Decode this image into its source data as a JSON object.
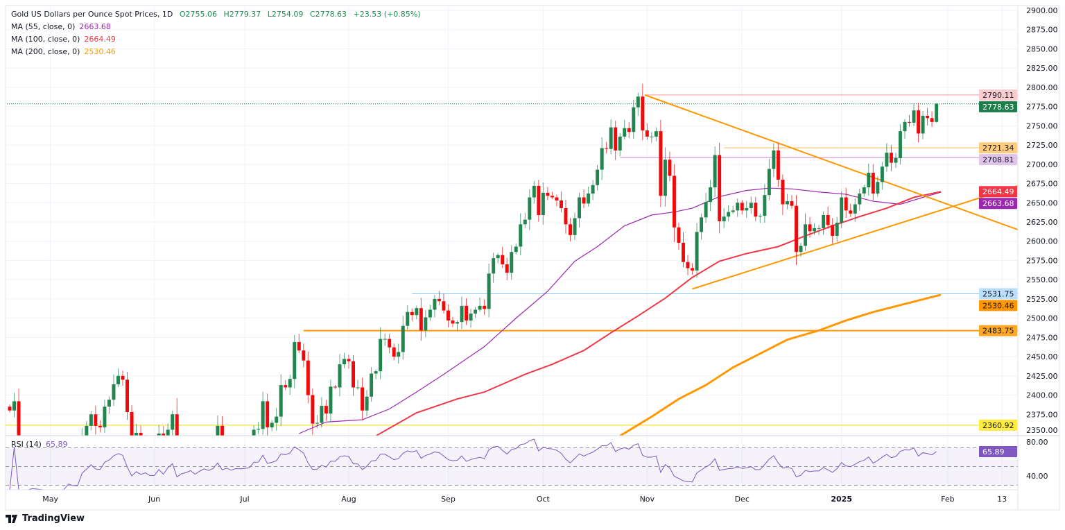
{
  "header": {
    "title": "Gold US Dollars per Ounce Spot Prices, 1D",
    "open": "O2755.06",
    "high": "H2779.37",
    "low": "L2754.09",
    "close": "C2778.63",
    "change": "+23.53 (+0.85%)"
  },
  "indicators": [
    {
      "label": "MA (55, close, 0)",
      "value": "2663.68",
      "color": "#9c27b0"
    },
    {
      "label": "MA (100, close, 0)",
      "value": "2664.49",
      "color": "#f23645"
    },
    {
      "label": "MA (200, close, 0)",
      "value": "2530.46",
      "color": "#ff9800"
    }
  ],
  "rsi": {
    "label": "RSI (14)",
    "value": "65.89",
    "color": "#7e57c2"
  },
  "logo": "TradingView",
  "chart_data": {
    "type": "candlestick",
    "title": "Gold US Dollars per Ounce Spot Prices, 1D",
    "ylim": [
      2350,
      2900
    ],
    "y_ticks": [
      2350,
      2375,
      2400,
      2425,
      2450,
      2475,
      2500,
      2525,
      2550,
      2575,
      2600,
      2625,
      2650,
      2675,
      2700,
      2725,
      2750,
      2775,
      2800,
      2825,
      2850,
      2875,
      2900
    ],
    "x_ticks": [
      {
        "label": "May",
        "bar": 9
      },
      {
        "label": "Jun",
        "bar": 32
      },
      {
        "label": "Jul",
        "bar": 52
      },
      {
        "label": "Aug",
        "bar": 75
      },
      {
        "label": "Sep",
        "bar": 97
      },
      {
        "label": "Oct",
        "bar": 118
      },
      {
        "label": "Nov",
        "bar": 141
      },
      {
        "label": "Dec",
        "bar": 162
      },
      {
        "label": "2025",
        "bar": 184
      },
      {
        "label": "Feb",
        "bar": 207.5
      },
      {
        "label": "13",
        "bar": 219.5
      }
    ],
    "grid": true,
    "first_open": 2385,
    "last_candle": {
      "open": 2755.06,
      "high": 2779.37,
      "low": 2754.09,
      "close": 2778.63
    },
    "closes": [
      2380,
      2392,
      2327,
      2322,
      2333,
      2337,
      2335,
      2333,
      2303,
      2300,
      2303,
      2301,
      2310,
      2323,
      2314,
      2313,
      2346,
      2360,
      2375,
      2360,
      2358,
      2385,
      2394,
      2414,
      2425,
      2420,
      2378,
      2333,
      2351,
      2335,
      2342,
      2327,
      2327,
      2350,
      2326,
      2355,
      2375,
      2293,
      2310,
      2316,
      2326,
      2303,
      2318,
      2330,
      2321,
      2330,
      2360,
      2322,
      2331,
      2319,
      2327,
      2326,
      2328,
      2330,
      2355,
      2356,
      2392,
      2358,
      2364,
      2372,
      2413,
      2410,
      2421,
      2469,
      2458,
      2445,
      2400,
      2363,
      2364,
      2386,
      2376,
      2411,
      2410,
      2440,
      2447,
      2444,
      2410,
      2410,
      2380,
      2398,
      2428,
      2431,
      2473,
      2473,
      2462,
      2450,
      2456,
      2490,
      2508,
      2504,
      2513,
      2484,
      2501,
      2511,
      2525,
      2522,
      2510,
      2497,
      2493,
      2495,
      2516,
      2497,
      2506,
      2511,
      2516,
      2512,
      2558,
      2578,
      2582,
      2570,
      2559,
      2586,
      2593,
      2622,
      2628,
      2657,
      2672,
      2634,
      2663,
      2659,
      2657,
      2653,
      2643,
      2622,
      2608,
      2630,
      2657,
      2649,
      2662,
      2673,
      2693,
      2721,
      2720,
      2748,
      2718,
      2736,
      2747,
      2742,
      2774,
      2788,
      2744,
      2736,
      2736,
      2743,
      2659,
      2706,
      2685,
      2618,
      2598,
      2573,
      2565,
      2562,
      2612,
      2631,
      2651,
      2670,
      2712,
      2626,
      2632,
      2638,
      2640,
      2650,
      2640,
      2643,
      2650,
      2632,
      2633,
      2660,
      2694,
      2718,
      2680,
      2648,
      2652,
      2646,
      2586,
      2594,
      2622,
      2613,
      2617,
      2617,
      2634,
      2621,
      2607,
      2624,
      2657,
      2640,
      2636,
      2648,
      2662,
      2670,
      2689,
      2662,
      2677,
      2697,
      2715,
      2702,
      2708,
      2743,
      2755,
      2754,
      2770,
      2740,
      2763,
      2760,
      2755,
      2778.63
    ],
    "moving_averages": [
      {
        "name": "MA (55, close, 0)",
        "color": "#9c27b0",
        "points": [
          [
            64,
            2350
          ],
          [
            70,
            2365
          ],
          [
            78,
            2368
          ],
          [
            84,
            2382
          ],
          [
            90,
            2404
          ],
          [
            96,
            2427
          ],
          [
            105,
            2463
          ],
          [
            112,
            2500
          ],
          [
            119,
            2535
          ],
          [
            125,
            2574
          ],
          [
            130,
            2593
          ],
          [
            136,
            2620
          ],
          [
            142,
            2634
          ],
          [
            147,
            2638
          ],
          [
            151,
            2643
          ],
          [
            157,
            2658
          ],
          [
            163,
            2666
          ],
          [
            168,
            2669
          ],
          [
            173,
            2668
          ],
          [
            179,
            2664
          ],
          [
            185,
            2661
          ],
          [
            191,
            2652
          ],
          [
            197,
            2648
          ],
          [
            202,
            2657
          ],
          [
            206,
            2663.68
          ]
        ]
      },
      {
        "name": "MA (100, close, 0)",
        "color": "#f23645",
        "points": [
          [
            81,
            2347
          ],
          [
            90,
            2377
          ],
          [
            99,
            2395
          ],
          [
            105,
            2404
          ],
          [
            114,
            2427
          ],
          [
            120,
            2440
          ],
          [
            127,
            2458
          ],
          [
            133,
            2481
          ],
          [
            139,
            2503
          ],
          [
            145,
            2526
          ],
          [
            151,
            2553
          ],
          [
            157,
            2574
          ],
          [
            163,
            2584
          ],
          [
            170,
            2593
          ],
          [
            176,
            2607
          ],
          [
            182,
            2620
          ],
          [
            188,
            2632
          ],
          [
            194,
            2643
          ],
          [
            200,
            2657
          ],
          [
            206,
            2664.49
          ]
        ]
      },
      {
        "name": "MA (200, close, 0)",
        "color": "#ff9800",
        "points": [
          [
            135,
            2347
          ],
          [
            142,
            2372
          ],
          [
            148,
            2395
          ],
          [
            154,
            2413
          ],
          [
            160,
            2436
          ],
          [
            166,
            2454
          ],
          [
            172,
            2472
          ],
          [
            179,
            2484
          ],
          [
            185,
            2497
          ],
          [
            191,
            2508
          ],
          [
            197,
            2517
          ],
          [
            206,
            2530.46
          ]
        ]
      }
    ],
    "trend_lines": [
      {
        "color": "#ff9800",
        "from": [
          140.5,
          2790.11
        ],
        "to": [
          223,
          2615
        ]
      },
      {
        "color": "#ff9800",
        "from": [
          151,
          2538
        ],
        "to": [
          223,
          2672
        ]
      }
    ],
    "horizontal_levels": [
      {
        "value": 2790.11,
        "label": "2790.11",
        "from_bar": 140.5,
        "color": "#f7a8ae",
        "tag_bg": "#fbcdd0",
        "tag_fg": "#131722"
      },
      {
        "value": 2778.63,
        "label": "2778.63",
        "from_bar": -2,
        "color": "#1e8a52",
        "dotted": true,
        "tag_bg": "#1e7d4b",
        "tag_fg": "#ffffff"
      },
      {
        "value": 2721.34,
        "label": "2721.34",
        "from_bar": 158,
        "color": "#ffc77a",
        "tag_bg": "#ffcc80",
        "tag_fg": "#131722"
      },
      {
        "value": 2708.81,
        "label": "2708.81",
        "from_bar": 135,
        "color": "#ce93d8",
        "tag_bg": "#e1c4ea",
        "tag_fg": "#131722"
      },
      {
        "value": 2531.75,
        "label": "2531.75",
        "from_bar": 89,
        "color": "#90caf9",
        "tag_bg": "#bbdefb",
        "tag_fg": "#131722"
      },
      {
        "value": 2483.75,
        "label": "2483.75",
        "from_bar": 65,
        "color": "#ff9800",
        "thick": true,
        "tag_bg": "#ffa726",
        "tag_fg": "#131722"
      },
      {
        "value": 2360.92,
        "label": "2360.92",
        "from_bar": -2,
        "color": "#f5e33b",
        "tag_bg": "#ffeb3b",
        "tag_fg": "#131722"
      }
    ],
    "ma_tags": [
      {
        "value": 2664.49,
        "label": "2664.49",
        "bg": "#f23645",
        "fg": "#ffffff"
      },
      {
        "value": 2663.68,
        "label": "2663.68",
        "bg": "#9c27b0",
        "fg": "#ffffff"
      },
      {
        "value": 2530.46,
        "label": "2530.46",
        "bg": "#ff9800",
        "fg": "#131722"
      }
    ],
    "rsi": {
      "period": 14,
      "ylim": [
        25,
        85
      ],
      "ticks": [
        {
          "v": 80,
          "label": "80.00"
        },
        {
          "v": 40,
          "label": "40.00"
        }
      ],
      "bands": [
        70,
        50,
        30
      ],
      "last": 65.89,
      "last_label": "65.89"
    },
    "colors": {
      "up": "#22854f",
      "down": "#ee0a0a"
    }
  }
}
